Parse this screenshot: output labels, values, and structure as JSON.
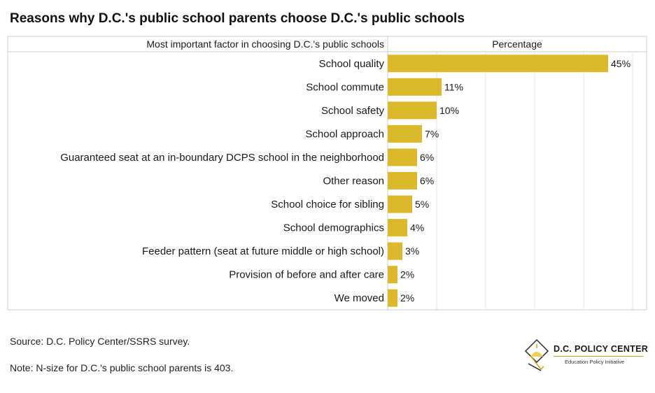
{
  "title": "Reasons why D.C.'s public school parents choose D.C.'s public schools",
  "source": "Source: D.C. Policy Center/SSRS survey.",
  "note": "Note: N-size for D.C.'s public school parents is 403.",
  "logo": {
    "name": "D.C. POLICY CENTER",
    "tagline": "Education Policy Initiative"
  },
  "colors": {
    "bar": "#dcb92c",
    "grid": "#e4e4e4",
    "border": "#cccccc",
    "logo_accent": "#cfa20a"
  },
  "chart_data": {
    "type": "bar",
    "orientation": "horizontal",
    "category_header": "Most important factor in choosing D.C.'s public schools",
    "value_header": "Percentage",
    "categories": [
      "School quality",
      "School commute",
      "School safety",
      "School approach",
      "Guaranteed seat at an in-boundary DCPS school in the neighborhood",
      "Other reason",
      "School choice for sibling",
      "School demographics",
      "Feeder pattern (seat at future middle or high school)",
      "Provision of before and after care",
      "We moved"
    ],
    "values": [
      45,
      11,
      10,
      7,
      6,
      6,
      5,
      4,
      3,
      2,
      2
    ],
    "value_labels": [
      "45%",
      "11%",
      "10%",
      "7%",
      "6%",
      "6%",
      "5%",
      "4%",
      "3%",
      "2%",
      "2%"
    ],
    "xlim": [
      0,
      50
    ],
    "grid": true
  }
}
